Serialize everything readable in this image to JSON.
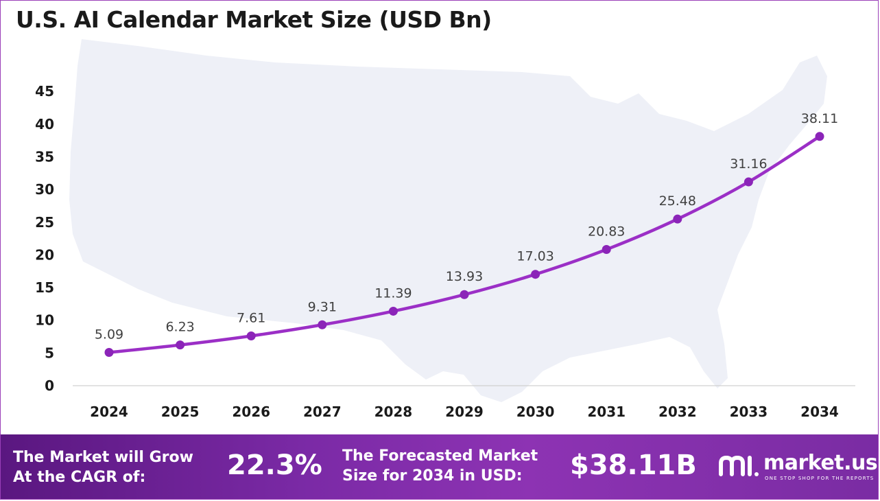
{
  "title": "U.S. AI Calendar Market Size (USD Bn)",
  "colors": {
    "line": "#9b2fc6",
    "marker": "#8b24b8",
    "footer": "#7b2aa6",
    "map": "#eef0f7"
  },
  "chart_data": {
    "type": "line",
    "categories": [
      "2024",
      "2025",
      "2026",
      "2027",
      "2028",
      "2029",
      "2030",
      "2031",
      "2032",
      "2033",
      "2034"
    ],
    "values": [
      5.09,
      6.23,
      7.61,
      9.31,
      11.39,
      13.93,
      17.03,
      20.83,
      25.48,
      31.16,
      38.11
    ],
    "data_labels": [
      "5.09",
      "6.23",
      "7.61",
      "9.31",
      "11.39",
      "13.93",
      "17.03",
      "20.83",
      "25.48",
      "31.16",
      "38.11"
    ],
    "y_ticks": [
      "0",
      "5",
      "10",
      "15",
      "20",
      "25",
      "30",
      "35",
      "40",
      "45"
    ],
    "ylim": [
      0,
      45
    ],
    "grid": false,
    "xlabel": "",
    "ylabel": ""
  },
  "footer": {
    "cagr_label_line1": "The Market will Grow",
    "cagr_label_line2": "At the CAGR of:",
    "cagr_value": "22.3%",
    "forecast_label_line1": "The Forecasted Market",
    "forecast_label_line2": "Size for 2034 in USD:",
    "forecast_value": "$38.11B",
    "brand_name": "market.us",
    "brand_tagline": "ONE STOP SHOP FOR THE REPORTS",
    "brand_icon": "market-us-logo"
  }
}
